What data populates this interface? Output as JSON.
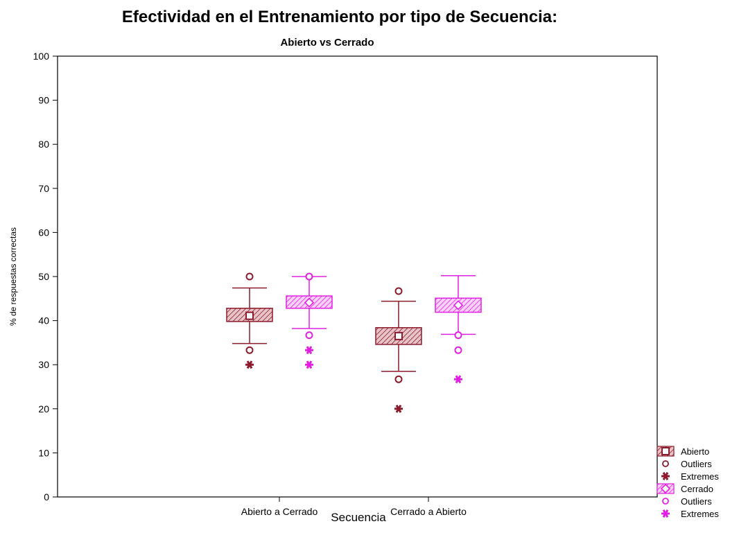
{
  "chart_data": {
    "type": "box",
    "title": "Efectividad en el Entrenamiento por tipo de Secuencia:",
    "subtitle": "Abierto vs Cerrado",
    "xlabel": "Secuencia",
    "ylabel": "% de respuestas correctas",
    "ylim": [
      0,
      100
    ],
    "yticks": [
      0,
      10,
      20,
      30,
      40,
      50,
      60,
      70,
      80,
      90,
      100
    ],
    "categories": [
      "Abierto a Cerrado",
      "Cerrado a Abierto"
    ],
    "grid": false,
    "legend_position": "bottom-right",
    "series": [
      {
        "name": "Abierto",
        "color": "#8b1a2b",
        "boxes": [
          {
            "median": 41.1,
            "q1": 39.8,
            "q3": 42.8,
            "whisker_low": 34.8,
            "whisker_high": 47.4,
            "outliers": [
              50,
              33.3
            ],
            "extremes": [
              30
            ]
          },
          {
            "median": 36.5,
            "q1": 34.6,
            "q3": 38.4,
            "whisker_low": 28.5,
            "whisker_high": 44.4,
            "outliers": [
              46.7,
              26.7
            ],
            "extremes": [
              20
            ]
          }
        ]
      },
      {
        "name": "Cerrado",
        "color": "#e020e0",
        "boxes": [
          {
            "median": 44.1,
            "q1": 42.8,
            "q3": 45.6,
            "whisker_low": 38.2,
            "whisker_high": 50,
            "outliers": [
              50,
              36.7
            ],
            "extremes": [
              33.3,
              30
            ]
          },
          {
            "median": 43.5,
            "q1": 41.9,
            "q3": 45.1,
            "whisker_low": 36.9,
            "whisker_high": 50.2,
            "outliers": [
              36.7,
              33.3
            ],
            "extremes": [
              26.7
            ]
          }
        ]
      }
    ],
    "legend": [
      {
        "label": "Abierto",
        "symbol": "box",
        "series": 0
      },
      {
        "label": "Outliers",
        "symbol": "circle",
        "series": 0
      },
      {
        "label": "Extremes",
        "symbol": "star",
        "series": 0
      },
      {
        "label": "Cerrado",
        "symbol": "box",
        "series": 1
      },
      {
        "label": "Outliers",
        "symbol": "circle",
        "series": 1
      },
      {
        "label": "Extremes",
        "symbol": "star",
        "series": 1
      }
    ]
  }
}
